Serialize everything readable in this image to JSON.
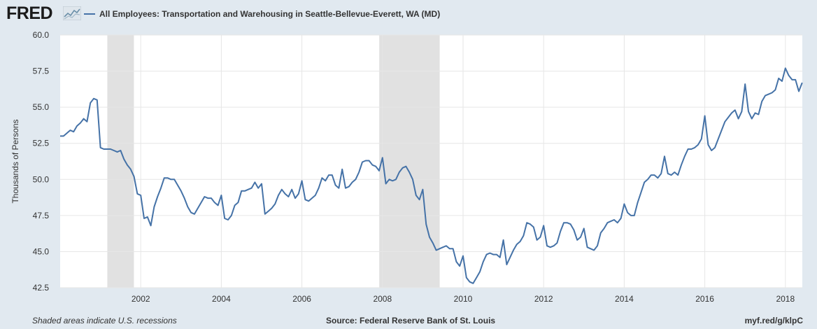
{
  "header": {
    "logo_text": "FRED",
    "legend_label": "All Employees: Transportation and Warehousing in Seattle-Bellevue-Everett, WA (MD)"
  },
  "footer": {
    "left": "Shaded areas indicate U.S. recessions",
    "center": "Source: Federal Reserve Bank of St. Louis",
    "right": "myf.red/g/klpC"
  },
  "colors": {
    "background": "#e1e9f0",
    "plot_background": "#ffffff",
    "line": "#4572a7",
    "recession": "#e1e1e1",
    "grid": "#e6e6e6"
  },
  "chart_data": {
    "type": "line",
    "title": "",
    "xlabel": "",
    "ylabel": "Thousands of Persons",
    "ylim": [
      42.5,
      60.0
    ],
    "xlim": [
      2000.0,
      2018.42
    ],
    "yticks": [
      42.5,
      45.0,
      47.5,
      50.0,
      52.5,
      55.0,
      57.5,
      60.0
    ],
    "ytick_labels": [
      "42.5",
      "45.0",
      "47.5",
      "50.0",
      "52.5",
      "55.0",
      "57.5",
      "60.0"
    ],
    "xticks": [
      2002,
      2004,
      2006,
      2008,
      2010,
      2012,
      2014,
      2016,
      2018
    ],
    "xtick_labels": [
      "2002",
      "2004",
      "2006",
      "2008",
      "2010",
      "2012",
      "2014",
      "2016",
      "2018"
    ],
    "grid": true,
    "legend": "top-left",
    "recessions": [
      {
        "start": 2001.17,
        "end": 2001.83
      },
      {
        "start": 2007.92,
        "end": 2009.42
      }
    ],
    "series": [
      {
        "name": "All Employees: Transportation and Warehousing in Seattle-Bellevue-Everett, WA (MD)",
        "start": 2000.0,
        "step": 0.0833333,
        "values": [
          53.0,
          53.0,
          53.2,
          53.4,
          53.3,
          53.7,
          53.9,
          54.2,
          54.0,
          55.3,
          55.6,
          55.5,
          52.2,
          52.1,
          52.1,
          52.1,
          52.0,
          51.9,
          52.0,
          51.4,
          51.0,
          50.7,
          50.2,
          49.0,
          48.9,
          47.3,
          47.4,
          46.8,
          48.1,
          48.8,
          49.4,
          50.1,
          50.1,
          50.0,
          50.0,
          49.6,
          49.2,
          48.7,
          48.1,
          47.7,
          47.6,
          48.0,
          48.4,
          48.8,
          48.7,
          48.7,
          48.4,
          48.2,
          48.9,
          47.3,
          47.2,
          47.5,
          48.2,
          48.4,
          49.2,
          49.2,
          49.3,
          49.4,
          49.8,
          49.4,
          49.7,
          47.6,
          47.8,
          48.0,
          48.3,
          48.9,
          49.3,
          49.0,
          48.8,
          49.3,
          48.7,
          49.0,
          49.9,
          48.6,
          48.5,
          48.7,
          48.9,
          49.4,
          50.1,
          49.9,
          50.3,
          50.3,
          49.6,
          49.4,
          50.7,
          49.4,
          49.5,
          49.8,
          50.0,
          50.5,
          51.2,
          51.3,
          51.3,
          51.0,
          50.9,
          50.6,
          51.5,
          49.7,
          50.0,
          49.9,
          50.0,
          50.5,
          50.8,
          50.9,
          50.5,
          50.0,
          48.9,
          48.6,
          49.3,
          46.9,
          46.0,
          45.6,
          45.1,
          45.2,
          45.3,
          45.4,
          45.2,
          45.2,
          44.3,
          44.0,
          44.7,
          43.2,
          42.9,
          42.8,
          43.2,
          43.6,
          44.3,
          44.8,
          44.9,
          44.8,
          44.8,
          44.6,
          45.8,
          44.1,
          44.6,
          45.1,
          45.5,
          45.7,
          46.1,
          47.0,
          46.9,
          46.7,
          45.8,
          46.0,
          46.8,
          45.4,
          45.3,
          45.4,
          45.6,
          46.4,
          47.0,
          47.0,
          46.9,
          46.5,
          45.8,
          46.0,
          46.6,
          45.3,
          45.2,
          45.1,
          45.4,
          46.3,
          46.6,
          47.0,
          47.1,
          47.2,
          47.0,
          47.3,
          48.3,
          47.7,
          47.5,
          47.5,
          48.4,
          49.1,
          49.8,
          50.0,
          50.3,
          50.3,
          50.1,
          50.4,
          51.6,
          50.4,
          50.3,
          50.5,
          50.3,
          51.0,
          51.6,
          52.1,
          52.1,
          52.2,
          52.4,
          52.8,
          54.4,
          52.4,
          52.0,
          52.2,
          52.8,
          53.4,
          54.0,
          54.3,
          54.6,
          54.8,
          54.2,
          54.7,
          56.6,
          54.7,
          54.2,
          54.6,
          54.5,
          55.4,
          55.8,
          55.9,
          56.0,
          56.2,
          57.0,
          56.8,
          57.7,
          57.2,
          56.9,
          56.9,
          56.1,
          56.7
        ]
      }
    ]
  }
}
